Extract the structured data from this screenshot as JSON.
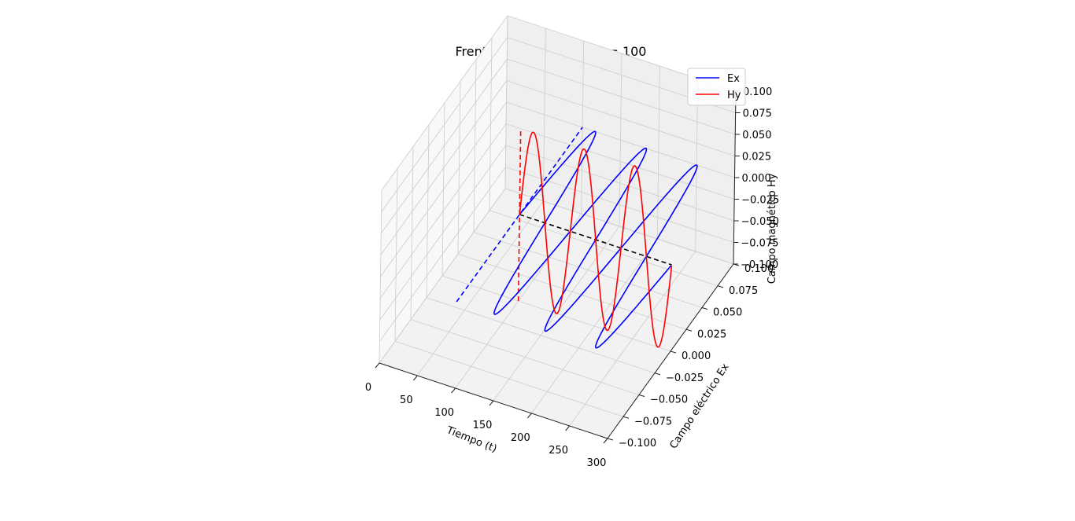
{
  "chart_data": {
    "type": "line",
    "projection": "3d",
    "title": "Frente de onda EM en k = 100",
    "xlabel": "Tiempo (t)",
    "ylabel": "Campo eléctrico Ex",
    "zlabel": "Campo magnético Hy",
    "xlim": [
      0,
      300
    ],
    "ylim": [
      -0.1,
      0.1
    ],
    "zlim": [
      -0.1,
      0.1
    ],
    "x_ticks": [
      "0",
      "50",
      "100",
      "150",
      "200",
      "250",
      "300"
    ],
    "y_ticks": [
      "−0.100",
      "−0.075",
      "−0.050",
      "−0.025",
      "0.000",
      "0.025",
      "0.050",
      "0.075",
      "0.100"
    ],
    "z_ticks": [
      "−0.100",
      "−0.075",
      "−0.050",
      "−0.025",
      "0.000",
      "0.025",
      "0.050",
      "0.075",
      "0.100"
    ],
    "grid": true,
    "legend": "top-right",
    "series": [
      {
        "name": "Ex",
        "color": "#0000ff",
        "plane": "Ex",
        "t_start": 100,
        "t_end": 300,
        "amplitude": 0.1,
        "period": 66.7
      },
      {
        "name": "Hy",
        "color": "#ff0000",
        "plane": "Hy",
        "t_start": 100,
        "t_end": 300,
        "amplitude": 0.1,
        "period": 66.7
      }
    ],
    "reference_lines": [
      {
        "axis": "t",
        "color": "#000000",
        "style": "dashed",
        "t_range": [
          100,
          300
        ]
      },
      {
        "axis": "Ex",
        "color": "#0000ff",
        "style": "dashed",
        "at_t": 100,
        "range": [
          -0.1,
          0.1
        ]
      },
      {
        "axis": "Hy",
        "color": "#ff0000",
        "style": "dashed",
        "at_t": 100,
        "range": [
          -0.1,
          0.1
        ]
      }
    ]
  }
}
